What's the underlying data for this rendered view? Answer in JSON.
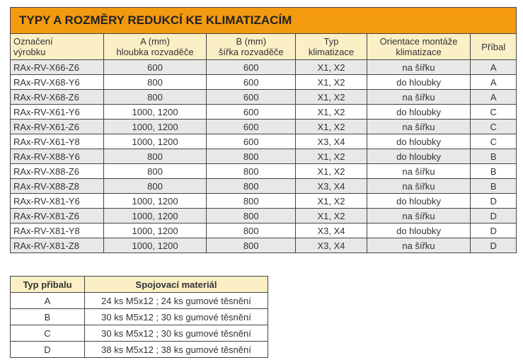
{
  "main_table": {
    "title": "TYPY A ROZMĚRY REDUKCÍ KE KLIMATIZACÍM",
    "headers": [
      [
        "Označení",
        "výrobku"
      ],
      [
        "A (mm)",
        "hloubka rozvaděče"
      ],
      [
        "B (mm)",
        "šířka rozvaděče"
      ],
      [
        "Typ",
        "klimatizace"
      ],
      [
        "Orientace montáže",
        "klimatizace"
      ],
      [
        "Příbal",
        ""
      ]
    ],
    "rows": [
      [
        "RAx-RV-X66-Z6",
        "600",
        "600",
        "X1, X2",
        "na šířku",
        "A"
      ],
      [
        "RAx-RV-X68-Y6",
        "800",
        "600",
        "X1, X2",
        "do hloubky",
        "A"
      ],
      [
        "RAx-RV-X68-Z6",
        "800",
        "600",
        "X1, X2",
        "na šířku",
        "A"
      ],
      [
        "RAx-RV-X61-Y6",
        "1000, 1200",
        "600",
        "X1, X2",
        "do hloubky",
        "C"
      ],
      [
        "RAx-RV-X61-Z6",
        "1000, 1200",
        "600",
        "X1, X2",
        "na šířku",
        "C"
      ],
      [
        "RAx-RV-X61-Y8",
        "1000, 1200",
        "600",
        "X3, X4",
        "do hloubky",
        "C"
      ],
      [
        "RAx-RV-X88-Y6",
        "800",
        "800",
        "X1, X2",
        "do hloubky",
        "B"
      ],
      [
        "RAx-RV-X88-Z6",
        "800",
        "800",
        "X1, X2",
        "na šířku",
        "B"
      ],
      [
        "RAx-RV-X88-Z8",
        "800",
        "800",
        "X3, X4",
        "na šířku",
        "B"
      ],
      [
        "RAx-RV-X81-Y6",
        "1000, 1200",
        "800",
        "X1, X2",
        "do hloubky",
        "D"
      ],
      [
        "RAx-RV-X81-Z6",
        "1000, 1200",
        "800",
        "X1, X2",
        "na šířku",
        "D"
      ],
      [
        "RAx-RV-X81-Y8",
        "1000, 1200",
        "800",
        "X3, X4",
        "do hloubky",
        "D"
      ],
      [
        "RAx-RV-X81-Z8",
        "1000, 1200",
        "800",
        "X3, X4",
        "na šířku",
        "D"
      ]
    ]
  },
  "pack_table": {
    "headers": [
      "Typ přibalu",
      "Spojovací materiál"
    ],
    "rows": [
      [
        "A",
        "24 ks M5x12 ; 24 ks gumové těsnění"
      ],
      [
        "B",
        "30 ks M5x12 ; 30 ks gumové těsnění"
      ],
      [
        "C",
        "30 ks M5x12 ; 30 ks gumové těsnění"
      ],
      [
        "D",
        "38 ks M5x12 ; 38 ks gumové těsnění"
      ]
    ]
  },
  "colors": {
    "title_bg": "#f39a10",
    "header_bg": "#fbefc6",
    "row_alt": "#e8e8e8"
  }
}
